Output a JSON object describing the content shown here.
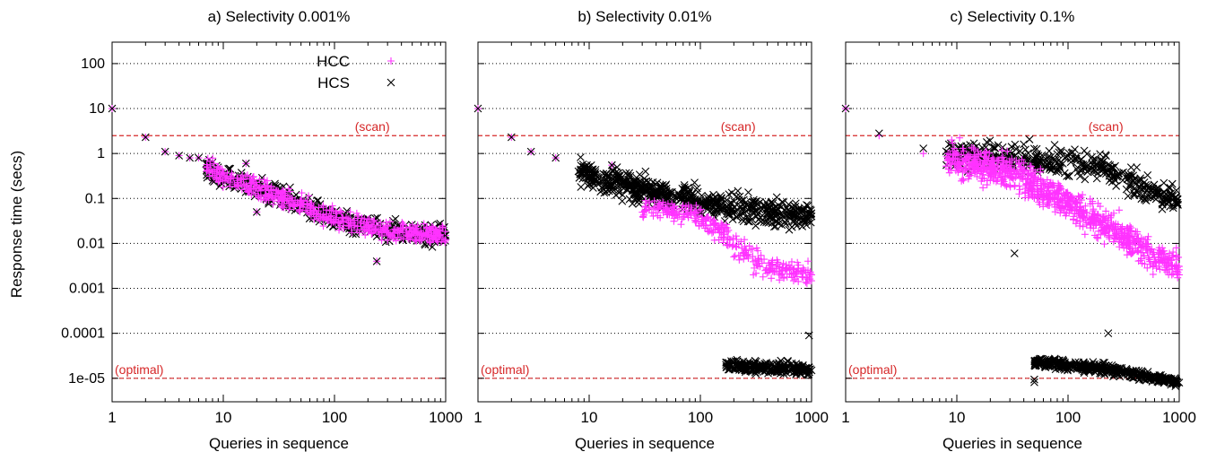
{
  "chart_data": [
    {
      "type": "scatter",
      "title": "a) Selectivity 0.001%",
      "xlabel": "Queries in sequence",
      "ylabel": "Response time (secs)",
      "x_scale": "log",
      "y_scale": "log",
      "xlim": [
        1,
        1000
      ],
      "ylim": [
        3e-06,
        300
      ],
      "x_ticks": [
        "1",
        "10",
        "100",
        "1000"
      ],
      "y_ticks": [
        "1e-05",
        "0.0001",
        "0.001",
        "0.01",
        "0.1",
        "1",
        "10",
        "100"
      ],
      "grid": "horizontal dotted",
      "legend": [
        "HCC",
        "HCS"
      ],
      "legend_position": "top-center",
      "reference_lines": [
        {
          "label": "(scan)",
          "y": 2.5,
          "color": "#d62728"
        },
        {
          "label": "(optimal)",
          "y": 1e-05,
          "color": "#d62728"
        }
      ],
      "series": [
        {
          "name": "HCC",
          "marker": "+",
          "color": "#ff33ff",
          "trend": "overlaps HCS",
          "points": [
            [
              1,
              10
            ],
            [
              2,
              2.3
            ],
            [
              3,
              1.1
            ],
            [
              4,
              0.9
            ],
            [
              5,
              0.8
            ],
            [
              6,
              0.8
            ],
            [
              8,
              0.25
            ],
            [
              10,
              0.35
            ],
            [
              13,
              0.18
            ],
            [
              16,
              0.6
            ],
            [
              20,
              0.05
            ],
            [
              30,
              0.12
            ],
            [
              50,
              0.06
            ],
            [
              100,
              0.03
            ],
            [
              200,
              0.02
            ],
            [
              240,
              0.004
            ],
            [
              500,
              0.015
            ],
            [
              1000,
              0.015
            ]
          ]
        },
        {
          "name": "HCS",
          "marker": "x",
          "color": "#000000",
          "trend": "decreasing from 10 to ~0.01",
          "points": [
            [
              1,
              10
            ],
            [
              2,
              2.3
            ],
            [
              3,
              1.1
            ],
            [
              4,
              0.9
            ],
            [
              5,
              0.8
            ],
            [
              6,
              0.8
            ],
            [
              8,
              0.25
            ],
            [
              10,
              0.35
            ],
            [
              13,
              0.18
            ],
            [
              16,
              0.6
            ],
            [
              20,
              0.05
            ],
            [
              30,
              0.12
            ],
            [
              50,
              0.06
            ],
            [
              100,
              0.03
            ],
            [
              200,
              0.02
            ],
            [
              240,
              0.004
            ],
            [
              500,
              0.015
            ],
            [
              1000,
              0.015
            ]
          ]
        }
      ]
    },
    {
      "type": "scatter",
      "title": "b) Selectivity 0.01%",
      "xlabel": "Queries in sequence",
      "x_scale": "log",
      "y_scale": "log",
      "xlim": [
        1,
        1000
      ],
      "ylim": [
        3e-06,
        300
      ],
      "x_ticks": [
        "1",
        "10",
        "100",
        "1000"
      ],
      "grid": "horizontal dotted",
      "reference_lines": [
        {
          "label": "(scan)",
          "y": 2.5,
          "color": "#d62728"
        },
        {
          "label": "(optimal)",
          "y": 1e-05,
          "color": "#d62728"
        }
      ],
      "series": [
        {
          "name": "HCC",
          "marker": "+",
          "color": "#ff33ff",
          "points": [
            [
              1,
              10
            ],
            [
              2,
              2.3
            ],
            [
              3,
              1.1
            ],
            [
              5,
              0.8
            ],
            [
              10,
              0.3
            ],
            [
              16,
              0.55
            ],
            [
              50,
              0.1
            ],
            [
              100,
              0.05
            ],
            [
              200,
              0.005
            ],
            [
              300,
              0.002
            ],
            [
              1000,
              0.002
            ]
          ]
        },
        {
          "name": "HCS",
          "marker": "x",
          "color": "#000000",
          "points": [
            [
              1,
              10
            ],
            [
              2,
              2.3
            ],
            [
              3,
              1.1
            ],
            [
              5,
              0.8
            ],
            [
              10,
              0.3
            ],
            [
              16,
              0.55
            ],
            [
              50,
              0.1
            ],
            [
              100,
              0.08
            ],
            [
              300,
              0.05
            ],
            [
              1000,
              0.04
            ],
            [
              170,
              2e-05
            ],
            [
              500,
              1.5e-05
            ],
            [
              950,
              9e-05
            ],
            [
              1000,
              1.5e-05
            ]
          ]
        }
      ]
    },
    {
      "type": "scatter",
      "title": "c) Selectivity 0.1%",
      "xlabel": "Queries in sequence",
      "x_scale": "log",
      "y_scale": "log",
      "xlim": [
        1,
        1000
      ],
      "ylim": [
        3e-06,
        300
      ],
      "x_ticks": [
        "1",
        "10",
        "100",
        "1000"
      ],
      "grid": "horizontal dotted",
      "reference_lines": [
        {
          "label": "(scan)",
          "y": 2.5,
          "color": "#d62728"
        },
        {
          "label": "(optimal)",
          "y": 1e-05,
          "color": "#d62728"
        }
      ],
      "series": [
        {
          "name": "HCC",
          "marker": "+",
          "color": "#ff33ff",
          "points": [
            [
              1,
              10
            ],
            [
              2,
              2.5
            ],
            [
              5,
              1
            ],
            [
              10,
              0.5
            ],
            [
              50,
              0.3
            ],
            [
              100,
              0.1
            ],
            [
              300,
              0.02
            ],
            [
              600,
              0.005
            ],
            [
              1000,
              0.002
            ]
          ]
        },
        {
          "name": "HCS",
          "marker": "x",
          "color": "#000000",
          "points": [
            [
              1,
              10
            ],
            [
              2,
              2.8
            ],
            [
              5,
              1.3
            ],
            [
              20,
              0.9
            ],
            [
              60,
              0.7
            ],
            [
              200,
              0.6
            ],
            [
              500,
              0.2
            ],
            [
              900,
              0.1
            ],
            [
              33,
              0.006
            ],
            [
              230,
              0.0001
            ],
            [
              50,
              2e-05
            ],
            [
              200,
              1.7e-05
            ],
            [
              1000,
              8e-06
            ]
          ]
        }
      ]
    }
  ]
}
